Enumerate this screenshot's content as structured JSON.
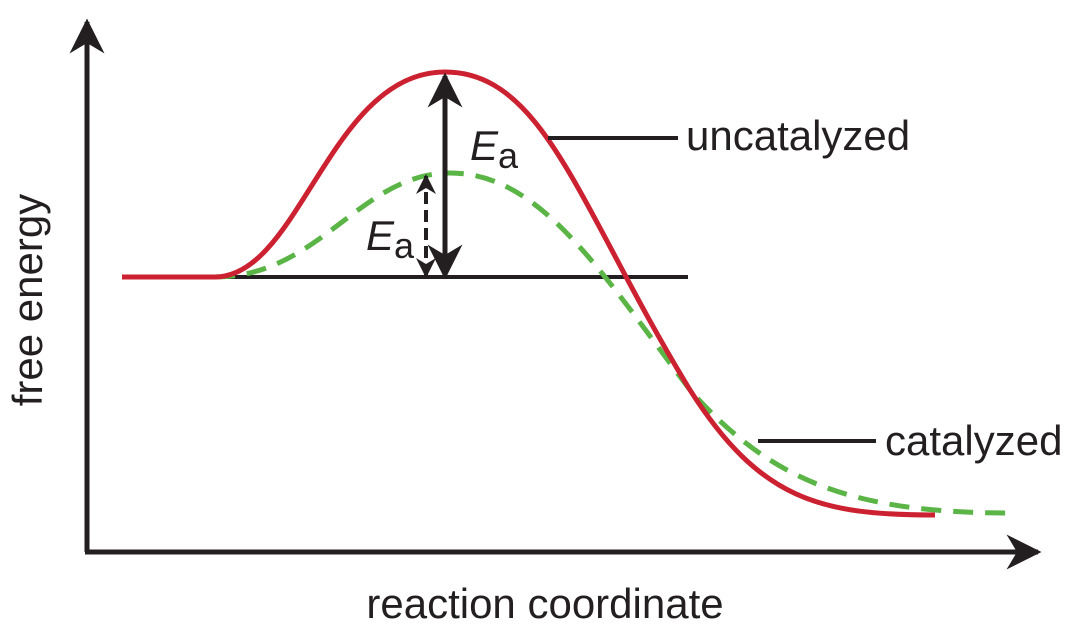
{
  "axes": {
    "x_label": "reaction coordinate",
    "y_label": "free energy"
  },
  "curves": {
    "uncatalyzed": {
      "label": "uncatalyzed",
      "color": "#cc2130",
      "style": "solid"
    },
    "catalyzed": {
      "label": "catalyzed",
      "color": "#5ab546",
      "style": "dashed"
    }
  },
  "activation_energy": {
    "symbol": "E",
    "subscript": "a"
  },
  "colors": {
    "axis": "#231f20",
    "text": "#231f20"
  }
}
